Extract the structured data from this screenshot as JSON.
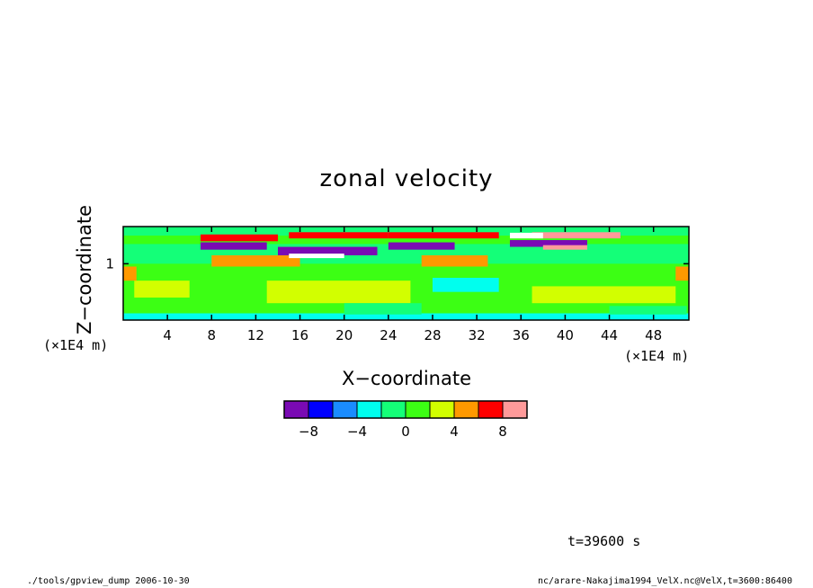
{
  "chart_data": {
    "type": "heatmap",
    "title": "zonal velocity",
    "xlabel": "X−coordinate",
    "ylabel": "Z−coordinate",
    "x_unit": "(×1E4 m)",
    "y_unit": "(×1E4 m)",
    "xlim": [
      0,
      51.2
    ],
    "ylim": [
      0,
      1.66
    ],
    "x_ticks": [
      "4",
      "8",
      "12",
      "16",
      "20",
      "24",
      "28",
      "32",
      "36",
      "40",
      "44",
      "48"
    ],
    "y_ticks": [
      "1"
    ],
    "colorbar": {
      "levels": [
        -10,
        -8,
        -6,
        -4,
        -2,
        0,
        2,
        4,
        6,
        8,
        10
      ],
      "tick_labels": [
        "−8",
        "−4",
        "0",
        "4",
        "8"
      ],
      "colors": [
        "#7a0ab4",
        "#0000ff",
        "#1a8cff",
        "#00ffee",
        "#14ff78",
        "#3cff14",
        "#d2ff00",
        "#ff9900",
        "#ff0000",
        "#ff9a9a"
      ]
    },
    "regions": [
      {
        "x": [
          0,
          51.2
        ],
        "z": [
          0,
          1.66
        ],
        "value": 1
      },
      {
        "x": [
          0,
          51.2
        ],
        "z": [
          1.0,
          1.35
        ],
        "value": -1
      },
      {
        "x": [
          0,
          51.2
        ],
        "z": [
          0.0,
          0.12
        ],
        "value": -3
      },
      {
        "x": [
          0,
          51.2
        ],
        "z": [
          1.5,
          1.66
        ],
        "value": -1
      },
      {
        "x": [
          1,
          6
        ],
        "z": [
          0.4,
          0.7
        ],
        "value": 3
      },
      {
        "x": [
          13,
          26
        ],
        "z": [
          0.3,
          0.7
        ],
        "value": 3
      },
      {
        "x": [
          37,
          50
        ],
        "z": [
          0.3,
          0.6
        ],
        "value": 3
      },
      {
        "x": [
          20,
          27
        ],
        "z": [
          0.1,
          0.3
        ],
        "value": -1
      },
      {
        "x": [
          28,
          34
        ],
        "z": [
          0.5,
          0.75
        ],
        "value": -3
      },
      {
        "x": [
          44,
          51
        ],
        "z": [
          0.1,
          0.25
        ],
        "value": -1
      },
      {
        "x": [
          0,
          1.2
        ],
        "z": [
          0.7,
          0.95
        ],
        "value": 5
      },
      {
        "x": [
          50,
          51.2
        ],
        "z": [
          0.7,
          0.95
        ],
        "value": 5
      },
      {
        "x": [
          8,
          16
        ],
        "z": [
          0.95,
          1.15
        ],
        "value": 5
      },
      {
        "x": [
          27,
          33
        ],
        "z": [
          0.95,
          1.15
        ],
        "value": 5
      },
      {
        "x": [
          7,
          14
        ],
        "z": [
          1.4,
          1.52
        ],
        "value": 7
      },
      {
        "x": [
          15,
          24
        ],
        "z": [
          1.45,
          1.56
        ],
        "value": 7
      },
      {
        "x": [
          24,
          34
        ],
        "z": [
          1.45,
          1.56
        ],
        "value": 7
      },
      {
        "x": [
          37,
          45
        ],
        "z": [
          1.45,
          1.56
        ],
        "value": 9
      },
      {
        "x": [
          7,
          13
        ],
        "z": [
          1.25,
          1.38
        ],
        "value": -9
      },
      {
        "x": [
          14,
          23
        ],
        "z": [
          1.15,
          1.3
        ],
        "value": -9
      },
      {
        "x": [
          24,
          30
        ],
        "z": [
          1.25,
          1.38
        ],
        "value": -9
      },
      {
        "x": [
          35,
          42
        ],
        "z": [
          1.3,
          1.42
        ],
        "value": -9
      },
      {
        "x": [
          15,
          20
        ],
        "z": [
          1.1,
          1.18
        ],
        "value": -11
      },
      {
        "x": [
          35,
          38
        ],
        "z": [
          1.45,
          1.55
        ],
        "value": 11
      },
      {
        "x": [
          38,
          42
        ],
        "z": [
          1.25,
          1.33
        ],
        "value": 9
      }
    ]
  },
  "annotations": {
    "timestamp": "t=39600 s",
    "footer_left": "./tools/gpview_dump  2006-10-30",
    "footer_right": "nc/arare-Nakajima1994_VelX.nc@VelX,t=3600:86400"
  }
}
